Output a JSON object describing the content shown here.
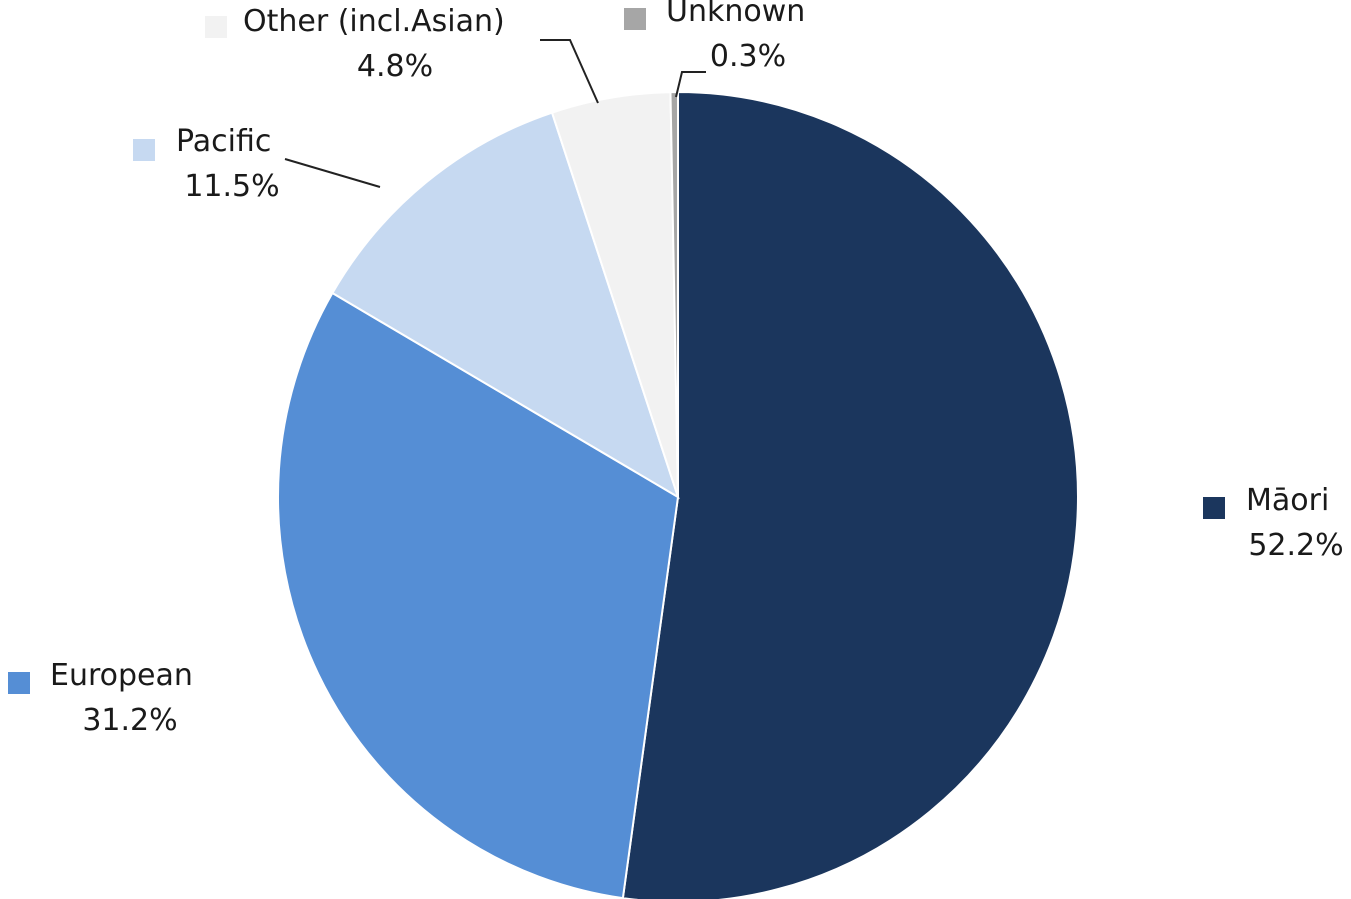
{
  "chart_data": {
    "type": "pie",
    "title": "",
    "slices": [
      {
        "label": "Māori",
        "value": 52.2,
        "value_label": "52.2%",
        "color": "#1b365d"
      },
      {
        "label": "European",
        "value": 31.2,
        "value_label": "31.2%",
        "color": "#558ed5"
      },
      {
        "label": "Pacific",
        "value": 11.5,
        "value_label": "11.5%",
        "color": "#c6d9f1"
      },
      {
        "label": "Other (incl.Asian)",
        "value": 4.8,
        "value_label": "4.8%",
        "color": "#f2f2f2"
      },
      {
        "label": "Unknown",
        "value": 0.3,
        "value_label": "0.3%",
        "color": "#a6a6a6"
      }
    ],
    "start_angle": "12 o'clock",
    "direction": "clockwise",
    "labels": "outside, with colour key square and percentage below",
    "leader_lines": [
      "Pacific",
      "Other (incl.Asian)",
      "Unknown"
    ]
  }
}
